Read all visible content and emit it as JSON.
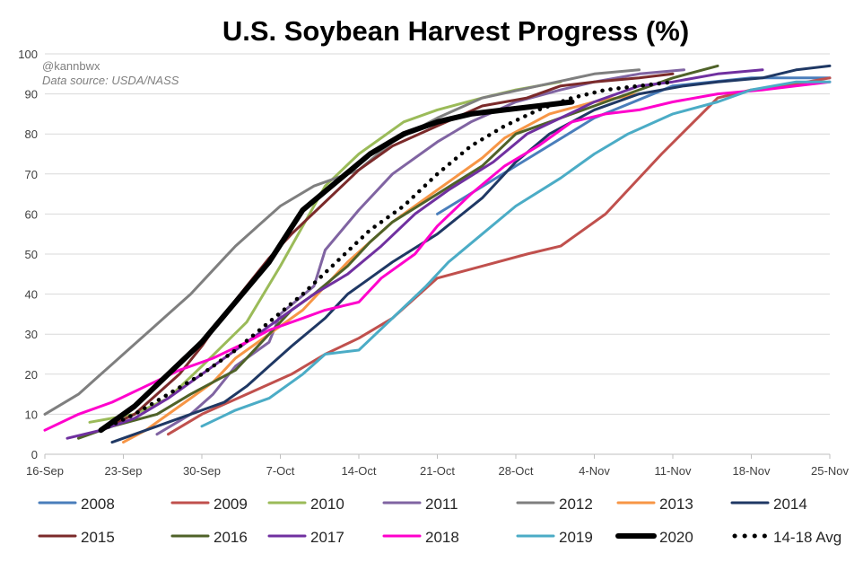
{
  "chart_data": {
    "type": "line",
    "title": "U.S. Soybean Harvest Progress (%)",
    "watermark": "@kannbwx",
    "source": "Data source: USDA/NASS",
    "xlabel": "",
    "ylabel": "",
    "ylim": [
      0,
      100
    ],
    "yticks": [
      0,
      10,
      20,
      30,
      40,
      50,
      60,
      70,
      80,
      90,
      100
    ],
    "xlim": [
      0,
      70
    ],
    "xtick_values": [
      0,
      7,
      14,
      21,
      28,
      35,
      42,
      49,
      56,
      63,
      70
    ],
    "xtick_labels": [
      "16-Sep",
      "23-Sep",
      "30-Sep",
      "7-Oct",
      "14-Oct",
      "21-Oct",
      "28-Oct",
      "4-Nov",
      "11-Nov",
      "18-Nov",
      "25-Nov"
    ],
    "x_unit": "days after 16-Sep",
    "grid": "horizontal",
    "legend_position": "bottom",
    "series": [
      {
        "name": "2008",
        "color": "#4a7ebb",
        "style": "solid",
        "x": [
          35,
          42,
          49,
          56,
          63,
          70
        ],
        "y": [
          60,
          72,
          84,
          92,
          94,
          94
        ]
      },
      {
        "name": "2009",
        "color": "#c0504d",
        "style": "solid",
        "x": [
          11,
          14,
          18,
          22,
          25,
          28,
          31,
          33,
          35,
          39,
          43,
          46,
          50,
          55,
          60,
          63,
          66,
          70
        ],
        "y": [
          5,
          10,
          15,
          20,
          25,
          29,
          34,
          39,
          44,
          47,
          50,
          52,
          60,
          75,
          89,
          91,
          92,
          94
        ]
      },
      {
        "name": "2010",
        "color": "#9bbb59",
        "style": "solid",
        "x": [
          4,
          8,
          11,
          14,
          18,
          21,
          25,
          28,
          32,
          35,
          39,
          42,
          46
        ],
        "y": [
          8,
          10,
          14,
          22,
          33,
          47,
          67,
          75,
          83,
          86,
          89,
          91,
          93
        ]
      },
      {
        "name": "2011",
        "color": "#8064a2",
        "style": "solid",
        "x": [
          10,
          13,
          15,
          17,
          20,
          21,
          24,
          25,
          28,
          31,
          35,
          38,
          42,
          46,
          49,
          53,
          57
        ],
        "y": [
          5,
          10,
          15,
          22,
          28,
          35,
          42,
          51,
          61,
          70,
          78,
          83,
          88,
          91,
          93,
          95,
          96
        ]
      },
      {
        "name": "2012",
        "color": "#7f7f7f",
        "style": "solid",
        "x": [
          0,
          3,
          5,
          7,
          9,
          11,
          13,
          15,
          17,
          19,
          21,
          24,
          28,
          31,
          35,
          39,
          44,
          49,
          53
        ],
        "y": [
          10,
          15,
          20,
          25,
          30,
          35,
          40,
          46,
          52,
          57,
          62,
          67,
          71,
          78,
          84,
          89,
          92,
          95,
          96
        ]
      },
      {
        "name": "2013",
        "color": "#f79646",
        "style": "solid",
        "x": [
          7,
          9,
          11,
          13,
          15,
          17,
          20,
          23,
          25,
          27,
          31,
          35,
          39,
          41,
          45,
          49,
          53
        ],
        "y": [
          3,
          6,
          10,
          14,
          18,
          24,
          30,
          36,
          42,
          48,
          58,
          66,
          74,
          79,
          85,
          88,
          90
        ]
      },
      {
        "name": "2014",
        "color": "#1f3864",
        "style": "solid",
        "x": [
          6,
          10,
          13,
          16,
          18,
          20,
          22,
          25,
          27,
          29,
          31,
          35,
          39,
          42,
          45,
          49,
          53,
          57,
          60,
          64,
          67,
          70
        ],
        "y": [
          3,
          7,
          10,
          13,
          17,
          22,
          27,
          34,
          40,
          44,
          48,
          55,
          64,
          73,
          80,
          86,
          90,
          92,
          93,
          94,
          96,
          97
        ]
      },
      {
        "name": "2015",
        "color": "#7b2a2a",
        "style": "solid",
        "x": [
          5,
          8,
          10,
          12,
          14,
          16,
          18,
          20,
          22,
          25,
          28,
          31,
          35,
          39,
          43,
          46,
          49,
          53,
          56
        ],
        "y": [
          6,
          10,
          15,
          20,
          27,
          35,
          42,
          49,
          55,
          63,
          71,
          77,
          82,
          87,
          89,
          92,
          93,
          94,
          95
        ]
      },
      {
        "name": "2016",
        "color": "#4f6228",
        "style": "solid",
        "x": [
          3,
          6,
          10,
          13,
          17,
          20,
          22,
          24,
          27,
          29,
          31,
          35,
          39,
          42,
          46,
          49,
          53,
          56,
          60
        ],
        "y": [
          4,
          7,
          10,
          15,
          21,
          30,
          36,
          40,
          47,
          53,
          58,
          65,
          72,
          80,
          84,
          87,
          91,
          94,
          97
        ]
      },
      {
        "name": "2017",
        "color": "#7030a0",
        "style": "solid",
        "x": [
          2,
          5,
          8,
          11,
          14,
          17,
          20,
          22,
          24,
          27,
          30,
          33,
          36,
          40,
          43,
          46,
          49,
          53,
          56,
          60,
          64
        ],
        "y": [
          4,
          6,
          9,
          14,
          20,
          26,
          32,
          36,
          40,
          45,
          52,
          60,
          66,
          73,
          80,
          84,
          88,
          92,
          93,
          95,
          96
        ]
      },
      {
        "name": "2018",
        "color": "#ff00cc",
        "style": "solid",
        "x": [
          0,
          3,
          6,
          9,
          12,
          15,
          18,
          20,
          23,
          25,
          28,
          30,
          33,
          35,
          38,
          41,
          44,
          47,
          50,
          53,
          56,
          60,
          64,
          70
        ],
        "y": [
          6,
          10,
          13,
          17,
          21,
          24,
          28,
          31,
          34,
          36,
          38,
          44,
          50,
          57,
          65,
          72,
          77,
          83,
          85,
          86,
          88,
          90,
          91,
          93
        ]
      },
      {
        "name": "2019",
        "color": "#4bacc6",
        "style": "solid",
        "x": [
          14,
          17,
          20,
          23,
          25,
          28,
          31,
          34,
          36,
          39,
          42,
          46,
          49,
          52,
          56,
          60,
          63,
          67,
          70
        ],
        "y": [
          7,
          11,
          14,
          20,
          25,
          26,
          34,
          42,
          48,
          55,
          62,
          69,
          75,
          80,
          85,
          88,
          91,
          93,
          93
        ]
      },
      {
        "name": "2020",
        "color": "#000000",
        "style": "bold",
        "x": [
          5,
          8,
          11,
          14,
          17,
          20,
          23,
          26,
          29,
          32,
          35,
          38,
          41,
          44,
          47
        ],
        "y": [
          6,
          12,
          20,
          28,
          38,
          48,
          61,
          68,
          75,
          80,
          83,
          85,
          86,
          87,
          88
        ]
      },
      {
        "name": "14-18 Avg",
        "color": "#000000",
        "style": "dotted",
        "x": [
          5,
          8,
          11,
          14,
          17,
          20,
          23,
          26,
          29,
          32,
          35,
          38,
          41,
          44,
          47,
          50,
          53,
          56
        ],
        "y": [
          6,
          10,
          15,
          20,
          26,
          33,
          40,
          48,
          56,
          62,
          70,
          77,
          82,
          86,
          89,
          91,
          92,
          93
        ]
      }
    ]
  }
}
